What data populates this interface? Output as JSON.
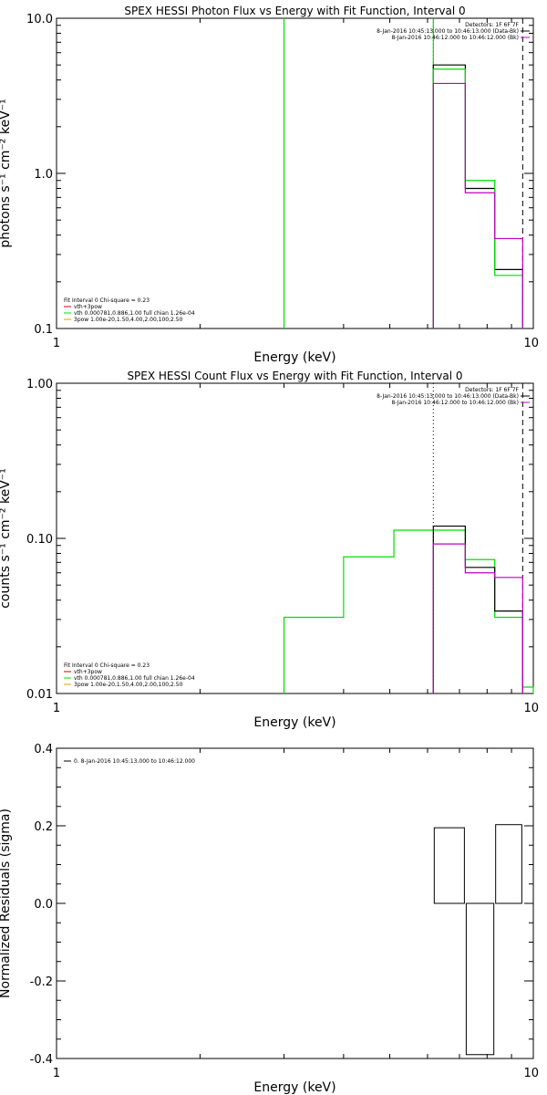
{
  "colors": {
    "background": "#ffffff",
    "axes": "#000000",
    "green": "#00e000",
    "magenta": "#c000c0",
    "red": "#d00000",
    "orange": "#e0a000"
  },
  "chart_data": [
    {
      "type": "line",
      "title": "SPEX HESSI Photon Flux vs Energy with Fit Function, Interval 0",
      "xlabel": "Energy (keV)",
      "ylabel": "photons s⁻¹ cm⁻² keV⁻¹",
      "xscale": "log",
      "yscale": "log",
      "xlim": [
        1,
        10
      ],
      "ylim": [
        0.1,
        10
      ],
      "xticks": [
        {
          "v": 1,
          "label": "1"
        },
        {
          "v": 10,
          "label": "10"
        }
      ],
      "yticks": [
        {
          "v": 0.1,
          "label": "0.1"
        },
        {
          "v": 1,
          "label": "1.0"
        },
        {
          "v": 10,
          "label": "10.0"
        }
      ],
      "legend_right": {
        "position": "top-right",
        "lines": [
          {
            "text": "Detectors: 1F 6F 7F",
            "color": ""
          },
          {
            "text": "8-Jan-2016 10:45:13.000 to 10:46:13.000 (Data-Bk)",
            "color": "#000000"
          },
          {
            "text": "8-Jan-2016 10:46:12.000 to 10:46:12.000 (Bk)",
            "color": "#c000c0"
          }
        ]
      },
      "legend_left": {
        "position": "bottom-left",
        "lines": [
          {
            "text": "Fit Interval 0   Chi-square = 0.23",
            "color": ""
          },
          {
            "text": "vth+3pow",
            "color": "#d00000"
          },
          {
            "text": "vth 0.000781,0.886,1.00  full chian 1.26e-04",
            "color": "#00e000"
          },
          {
            "text": "3pow 1.00e-20,1.50,4.00,2.00,100,2.50",
            "color": "#e0a000"
          }
        ]
      },
      "ref_lines": [
        {
          "x": 6.17,
          "style": "dotted"
        },
        {
          "x": 9.5,
          "style": "dashed"
        }
      ],
      "series": [
        {
          "role": "green vertical",
          "color": "#00e000",
          "kind": "vline",
          "x": 3.0
        },
        {
          "role": "green vertical",
          "color": "#00e000",
          "kind": "vline",
          "x": 6.17
        },
        {
          "role": "data",
          "color": "#000000",
          "kind": "steps",
          "edges": [
            6.17,
            7.2,
            8.3,
            9.5
          ],
          "values": [
            5.0,
            0.8,
            0.24
          ]
        },
        {
          "role": "fit",
          "color": "#00e000",
          "kind": "steps",
          "edges": [
            6.17,
            7.2,
            8.3,
            9.5
          ],
          "values": [
            4.7,
            0.9,
            0.22
          ]
        },
        {
          "role": "background",
          "color": "#c000c0",
          "kind": "steps",
          "edges": [
            6.17,
            7.2,
            8.3,
            9.5
          ],
          "values": [
            3.8,
            0.75,
            0.38
          ]
        }
      ]
    },
    {
      "type": "line",
      "title": "SPEX HESSI Count Flux vs Energy with Fit Function, Interval 0",
      "xlabel": "Energy (keV)",
      "ylabel": "counts s⁻¹ cm⁻² keV⁻¹",
      "xscale": "log",
      "yscale": "log",
      "xlim": [
        1,
        10
      ],
      "ylim": [
        0.01,
        1
      ],
      "xticks": [
        {
          "v": 1,
          "label": "1"
        },
        {
          "v": 10,
          "label": "10"
        }
      ],
      "yticks": [
        {
          "v": 0.01,
          "label": "0.01"
        },
        {
          "v": 0.1,
          "label": "0.10"
        },
        {
          "v": 1,
          "label": "1.00"
        }
      ],
      "legend_right": {
        "position": "top-right",
        "lines": [
          {
            "text": "Detectors: 1F 6F 7F",
            "color": ""
          },
          {
            "text": "8-Jan-2016 10:45:13.000 to 10:46:13.000 (Data-Bk)",
            "color": "#000000"
          },
          {
            "text": "8-Jan-2016 10:46:12.000 to 10:46:12.000 (Bk)",
            "color": "#c000c0"
          }
        ]
      },
      "legend_left": {
        "position": "bottom-left",
        "lines": [
          {
            "text": "Fit Interval 0   Chi-square = 0.23",
            "color": ""
          },
          {
            "text": "vth+3pow",
            "color": "#d00000"
          },
          {
            "text": "vth 0.000781,0.886,1.00  full chian 1.26e-04",
            "color": "#00e000"
          },
          {
            "text": "3pow 1.00e-20,1.50,4.00,2.00,100,2.50",
            "color": "#e0a000"
          }
        ]
      },
      "ref_lines": [
        {
          "x": 6.17,
          "style": "dotted"
        },
        {
          "x": 9.5,
          "style": "dashed"
        }
      ],
      "series": [
        {
          "role": "fit",
          "color": "#00e000",
          "kind": "steps",
          "edges": [
            3.0,
            4.0,
            5.1,
            6.17,
            7.2,
            8.3,
            9.5,
            10.0
          ],
          "values": [
            0.031,
            0.076,
            0.113,
            0.113,
            0.073,
            0.031,
            0.011
          ]
        },
        {
          "role": "data",
          "color": "#000000",
          "kind": "steps",
          "edges": [
            6.17,
            7.2,
            8.3,
            9.5
          ],
          "values": [
            0.12,
            0.065,
            0.034
          ]
        },
        {
          "role": "background",
          "color": "#c000c0",
          "kind": "steps",
          "edges": [
            6.17,
            7.2,
            8.3,
            9.5
          ],
          "values": [
            0.092,
            0.06,
            0.056
          ]
        }
      ]
    },
    {
      "type": "line",
      "title": "",
      "xlabel": "Energy (keV)",
      "ylabel": "Normalized Residuals (sigma)",
      "xscale": "log",
      "yscale": "linear",
      "xlim": [
        1,
        10
      ],
      "ylim": [
        -0.4,
        0.4
      ],
      "xticks": [
        {
          "v": 1,
          "label": "1"
        },
        {
          "v": 10,
          "label": "10"
        }
      ],
      "yticks": [
        {
          "v": -0.4,
          "label": "-0.4"
        },
        {
          "v": -0.2,
          "label": "-0.2"
        },
        {
          "v": 0,
          "label": "0.0"
        },
        {
          "v": 0.2,
          "label": "0.2"
        },
        {
          "v": 0.4,
          "label": "0.4"
        }
      ],
      "legend_left": {
        "position": "top-left",
        "lines": [
          {
            "text": "0. 8-Jan-2016 10:45:13.000 to 10:46:12.000",
            "color": "#000000"
          }
        ]
      },
      "ref_lines": [],
      "series": [
        {
          "role": "residuals",
          "color": "#000000",
          "kind": "bars",
          "edges": [
            6.17,
            7.2,
            8.3,
            9.5
          ],
          "values": [
            0.195,
            -0.39,
            0.203
          ]
        }
      ]
    }
  ]
}
